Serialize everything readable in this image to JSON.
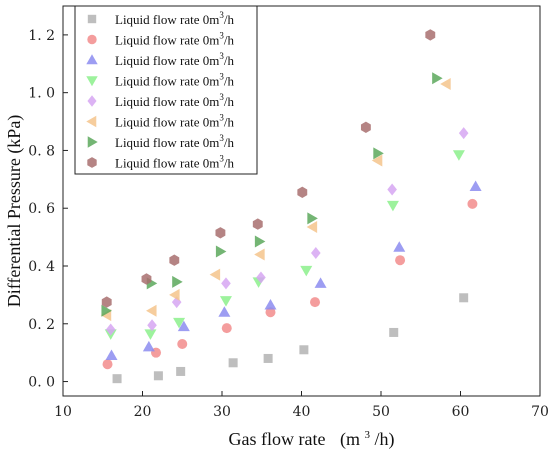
{
  "chart_data": {
    "type": "scatter",
    "title": "",
    "xlabel": "Gas flow rate",
    "xlabel_unit_base": "(m",
    "xlabel_unit_sup": "3",
    "xlabel_unit_tail": "/h)",
    "ylabel": "Differential Pressure  (kPa)",
    "xlim": [
      10,
      70
    ],
    "ylim": [
      -0.05,
      1.3
    ],
    "x_ticks": [
      10,
      20,
      30,
      40,
      50,
      60,
      70
    ],
    "y_ticks": [
      0.0,
      0.2,
      0.4,
      0.6,
      0.8,
      1.0,
      1.2
    ],
    "y_tick_labels": [
      "0. 0",
      "0. 2",
      "0. 4",
      "0. 6",
      "0. 8",
      "1. 0",
      "1. 2"
    ],
    "grid": false,
    "legend_position": "top-left",
    "series": [
      {
        "name": "Liquid flow rate 0m³/h",
        "legend_base": "Liquid flow rate 0m",
        "legend_sup": "3",
        "legend_tail": "/h",
        "marker": "square",
        "color": "#b3b3b3",
        "x": [
          16.8,
          22.0,
          24.8,
          31.4,
          35.8,
          40.3,
          51.6,
          60.4
        ],
        "y": [
          0.01,
          0.02,
          0.035,
          0.065,
          0.08,
          0.11,
          0.17,
          0.29
        ]
      },
      {
        "name": "Liquid flow rate 0m³/h",
        "legend_base": "Liquid flow rate 0m",
        "legend_sup": "3",
        "legend_tail": "/h",
        "marker": "circle",
        "color": "#f28c8c",
        "x": [
          15.6,
          21.7,
          25.0,
          30.6,
          36.1,
          41.7,
          52.4,
          61.5
        ],
        "y": [
          0.06,
          0.1,
          0.13,
          0.185,
          0.24,
          0.275,
          0.42,
          0.615
        ]
      },
      {
        "name": "Liquid flow rate 0m³/h",
        "legend_base": "Liquid flow rate 0m",
        "legend_sup": "3",
        "legend_tail": "/h",
        "marker": "triangle-up",
        "color": "#8c8cf0",
        "x": [
          16.1,
          20.8,
          25.2,
          30.3,
          36.1,
          42.4,
          52.3,
          61.9
        ],
        "y": [
          0.09,
          0.12,
          0.19,
          0.24,
          0.265,
          0.34,
          0.465,
          0.675
        ]
      },
      {
        "name": "Liquid flow rate 0m³/h",
        "legend_base": "Liquid flow rate 0m",
        "legend_sup": "3",
        "legend_tail": "/h",
        "marker": "triangle-down",
        "color": "#8cf08c",
        "x": [
          16.0,
          21.0,
          24.6,
          30.5,
          34.6,
          40.6,
          51.5,
          59.8
        ],
        "y": [
          0.165,
          0.165,
          0.205,
          0.28,
          0.345,
          0.385,
          0.61,
          0.785
        ]
      },
      {
        "name": "Liquid flow rate 0m³/h",
        "legend_base": "Liquid flow rate 0m",
        "legend_sup": "3",
        "legend_tail": "/h",
        "marker": "diamond",
        "color": "#d6a6f2",
        "x": [
          16.0,
          21.2,
          24.3,
          30.5,
          34.9,
          41.8,
          51.4,
          60.4
        ],
        "y": [
          0.18,
          0.195,
          0.275,
          0.34,
          0.36,
          0.445,
          0.665,
          0.86
        ]
      },
      {
        "name": "Liquid flow rate 0m³/h",
        "legend_base": "Liquid flow rate 0m",
        "legend_sup": "3",
        "legend_tail": "/h",
        "marker": "triangle-left",
        "color": "#f5c48c",
        "x": [
          15.5,
          21.2,
          24.1,
          29.2,
          34.8,
          41.4,
          49.6,
          58.2
        ],
        "y": [
          0.23,
          0.245,
          0.3,
          0.37,
          0.44,
          0.535,
          0.765,
          1.03
        ]
      },
      {
        "name": "Liquid flow rate 0m³/h",
        "legend_base": "Liquid flow rate 0m",
        "legend_sup": "3",
        "legend_tail": "/h",
        "marker": "triangle-right",
        "color": "#5ca85c",
        "x": [
          15.4,
          21.1,
          24.3,
          29.8,
          34.7,
          41.3,
          49.6,
          57.0
        ],
        "y": [
          0.245,
          0.34,
          0.345,
          0.45,
          0.485,
          0.565,
          0.79,
          1.05
        ]
      },
      {
        "name": "Liquid flow rate 0m³/h",
        "legend_base": "Liquid flow rate 0m",
        "legend_sup": "3",
        "legend_tail": "/h",
        "marker": "hexagon",
        "color": "#a86e6e",
        "x": [
          15.5,
          20.5,
          24.0,
          29.8,
          34.5,
          40.1,
          48.1,
          56.2
        ],
        "y": [
          0.275,
          0.355,
          0.42,
          0.515,
          0.545,
          0.655,
          0.88,
          1.2
        ]
      }
    ]
  }
}
